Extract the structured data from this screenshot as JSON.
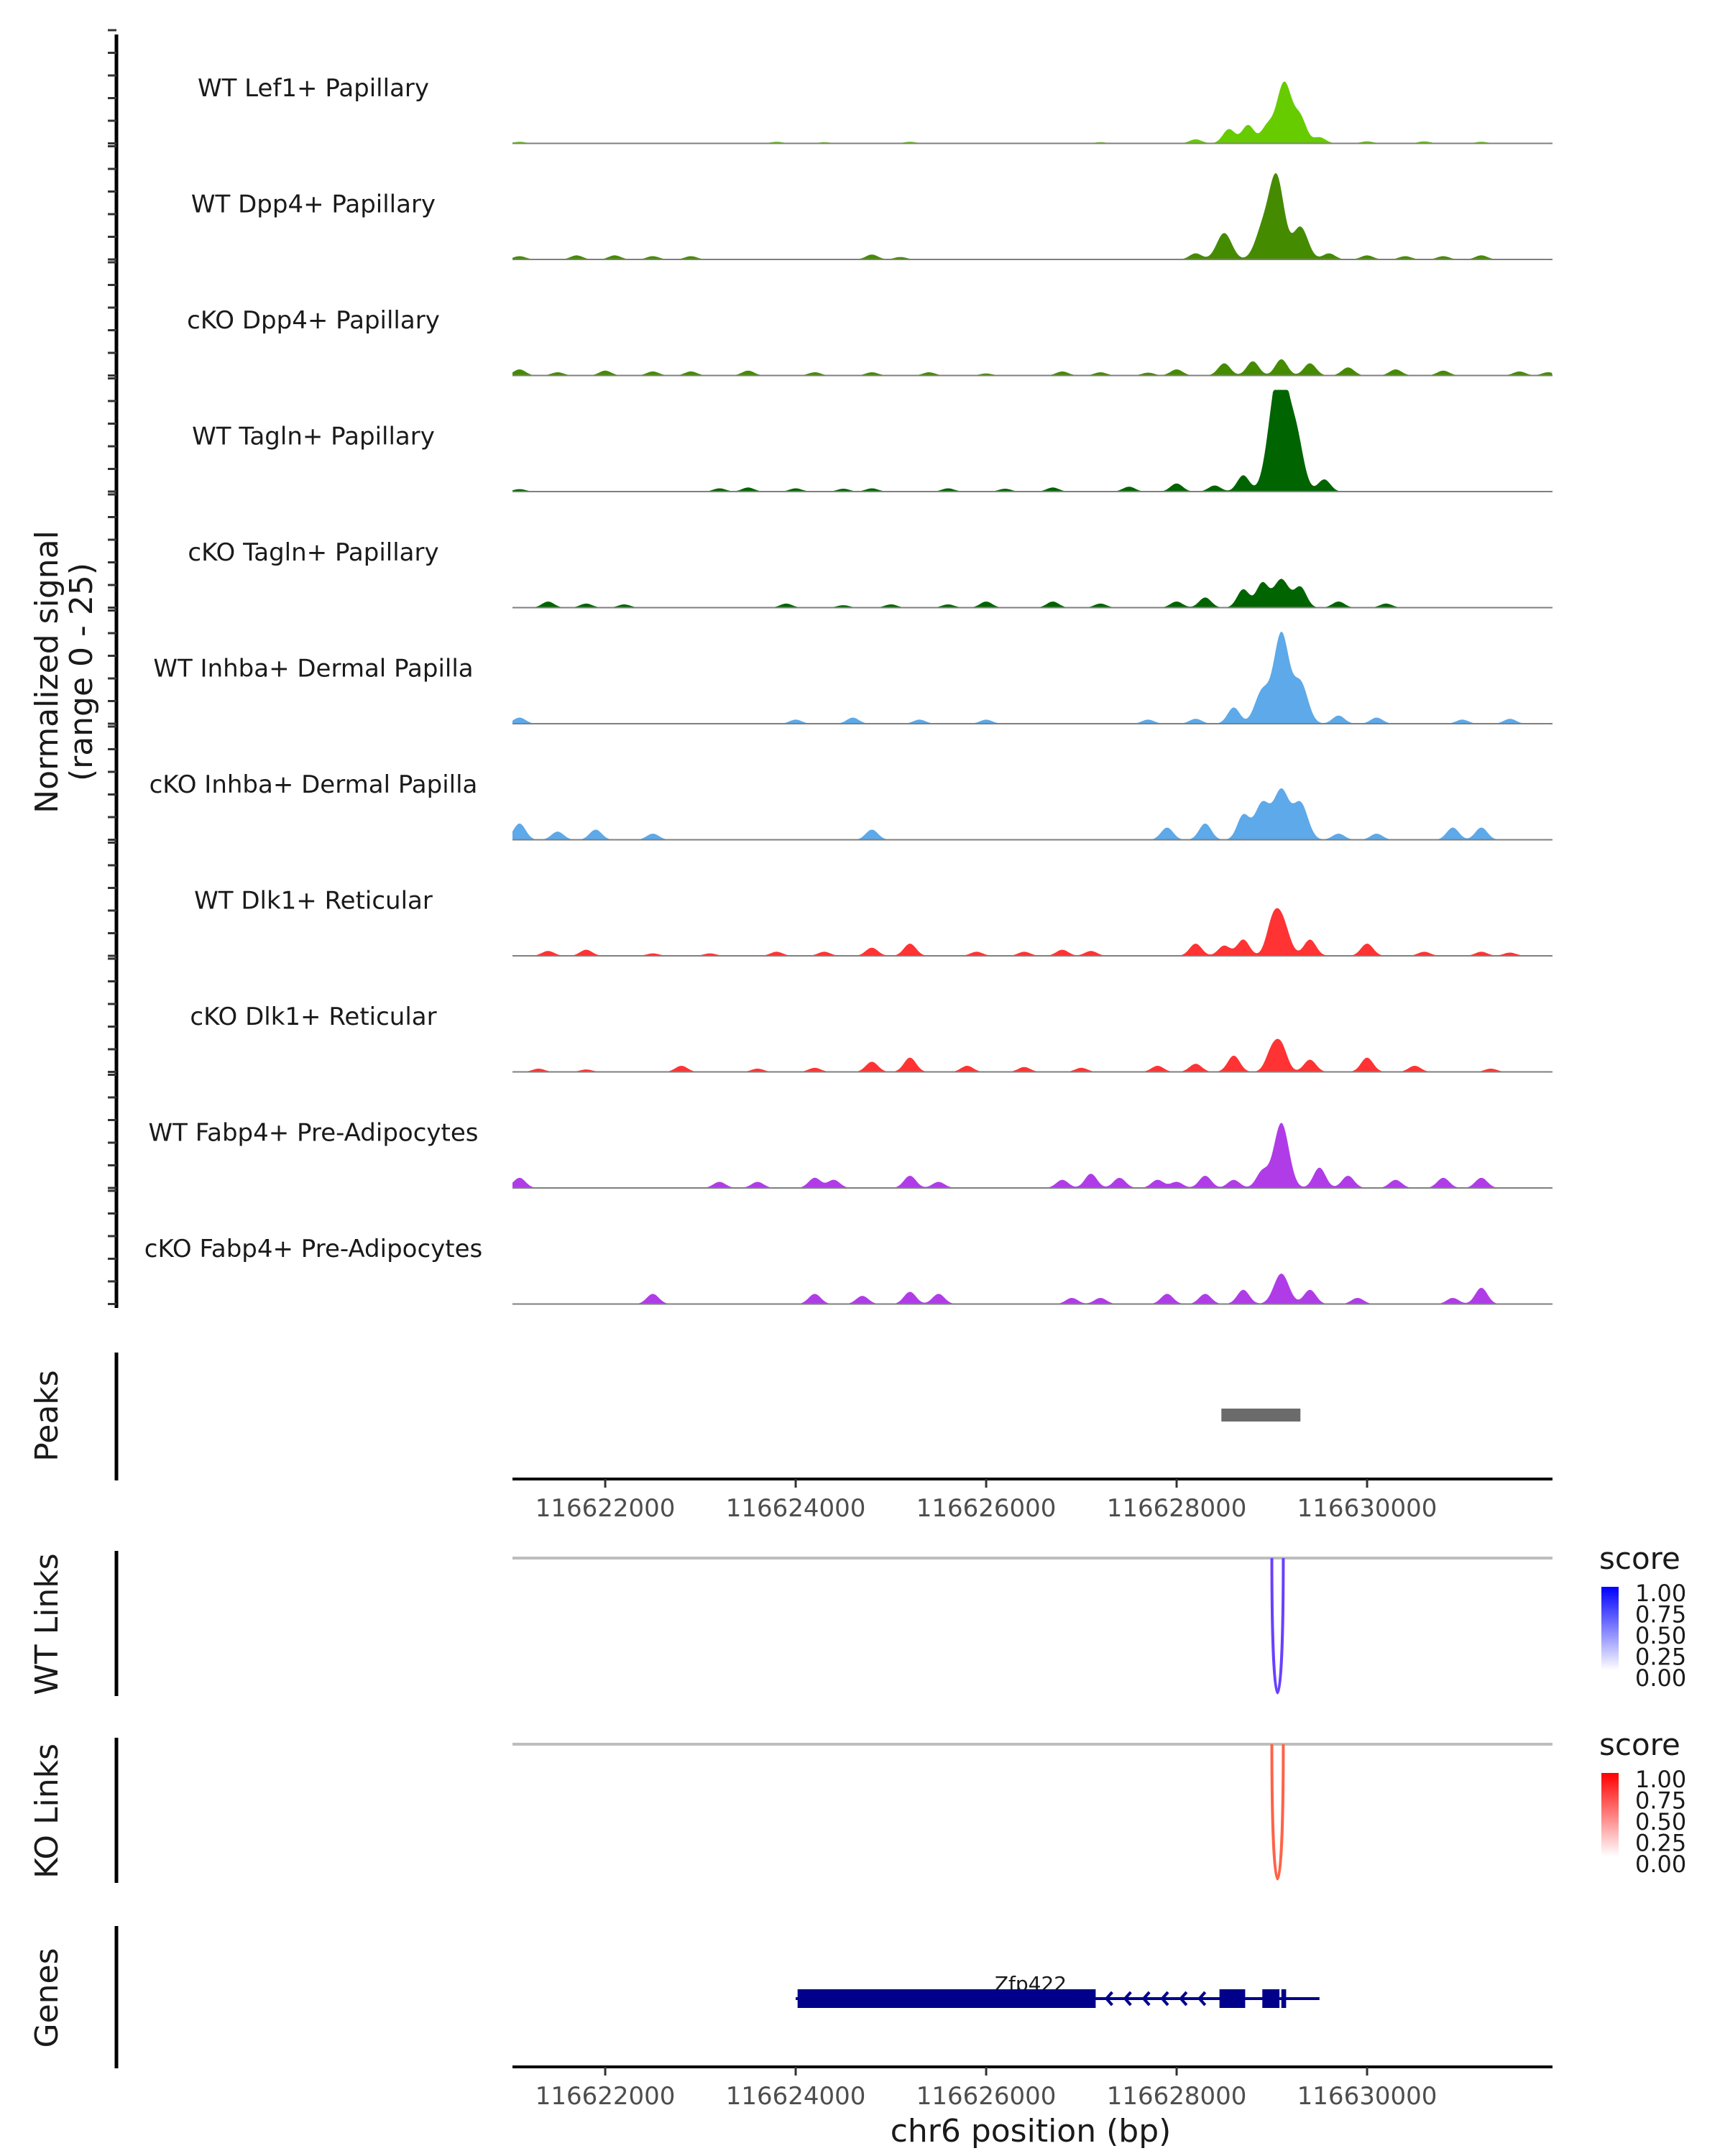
{
  "chart_data": {
    "type": "area",
    "title": "",
    "region": "chr6:116621026-116631947",
    "xlabel": "chr6 position (bp)",
    "xlim": [
      116621026,
      116631947
    ],
    "x_ticks": [
      116622000,
      116624000,
      116626000,
      116628000,
      116630000
    ],
    "x_tick_labels": [
      "116622000",
      "116624000",
      "116626000",
      "116628000",
      "116630000"
    ],
    "coverage_ylabel_line1": "Normalized signal",
    "coverage_ylabel_line2": "(range 0 - 25)",
    "ylim": [
      0,
      25
    ],
    "series": [
      {
        "name": "WT Lef1+ Papillary",
        "color": "#66CC00",
        "peaks": [
          [
            116621100,
            0.4
          ],
          [
            116623800,
            0.4
          ],
          [
            116624300,
            0.3
          ],
          [
            116625200,
            0.4
          ],
          [
            116627200,
            0.3
          ],
          [
            116628200,
            1.0
          ],
          [
            116628550,
            3.5
          ],
          [
            116628750,
            4.5
          ],
          [
            116628950,
            4.0
          ],
          [
            116629130,
            15.0
          ],
          [
            116629300,
            6.0
          ],
          [
            116629500,
            1.5
          ],
          [
            116630000,
            0.5
          ],
          [
            116630600,
            0.5
          ],
          [
            116631200,
            0.4
          ]
        ]
      },
      {
        "name": "WT Dpp4+ Papillary",
        "color": "#458B00",
        "peaks": [
          [
            116621100,
            0.8
          ],
          [
            116621700,
            1.0
          ],
          [
            116622100,
            1.0
          ],
          [
            116622500,
            0.8
          ],
          [
            116622900,
            0.8
          ],
          [
            116624800,
            1.2
          ],
          [
            116625100,
            0.6
          ],
          [
            116628200,
            1.5
          ],
          [
            116628500,
            6.5
          ],
          [
            116628900,
            7.0
          ],
          [
            116629050,
            20.0
          ],
          [
            116629300,
            8.0
          ],
          [
            116629600,
            1.5
          ],
          [
            116630000,
            1.0
          ],
          [
            116630400,
            0.8
          ],
          [
            116630800,
            0.8
          ],
          [
            116631200,
            1.0
          ]
        ]
      },
      {
        "name": "cKO Dpp4+ Papillary",
        "color": "#458B00",
        "peaks": [
          [
            116621100,
            1.5
          ],
          [
            116621500,
            0.8
          ],
          [
            116622000,
            1.2
          ],
          [
            116622500,
            1.0
          ],
          [
            116622900,
            1.0
          ],
          [
            116623500,
            1.2
          ],
          [
            116624200,
            0.8
          ],
          [
            116624800,
            0.8
          ],
          [
            116625400,
            0.8
          ],
          [
            116626000,
            0.5
          ],
          [
            116626800,
            1.0
          ],
          [
            116627200,
            0.8
          ],
          [
            116627700,
            0.7
          ],
          [
            116628000,
            1.5
          ],
          [
            116628500,
            3.0
          ],
          [
            116628800,
            3.5
          ],
          [
            116629100,
            4.0
          ],
          [
            116629400,
            3.0
          ],
          [
            116629800,
            2.0
          ],
          [
            116630300,
            1.5
          ],
          [
            116630800,
            1.2
          ],
          [
            116631600,
            1.0
          ],
          [
            116631900,
            0.8
          ]
        ]
      },
      {
        "name": "WT Tagln+ Papillary",
        "color": "#006400",
        "peaks": [
          [
            116621100,
            0.6
          ],
          [
            116623200,
            0.8
          ],
          [
            116623500,
            1.0
          ],
          [
            116624000,
            0.8
          ],
          [
            116624500,
            0.7
          ],
          [
            116624800,
            0.8
          ],
          [
            116625600,
            0.8
          ],
          [
            116626200,
            0.7
          ],
          [
            116626700,
            1.0
          ],
          [
            116627500,
            1.2
          ],
          [
            116628000,
            2.0
          ],
          [
            116628400,
            1.5
          ],
          [
            116628700,
            4.0
          ],
          [
            116629000,
            12.0
          ],
          [
            116629100,
            24.0
          ],
          [
            116629250,
            14.0
          ],
          [
            116629550,
            3.0
          ]
        ]
      },
      {
        "name": "cKO Tagln+ Papillary",
        "color": "#006400",
        "peaks": [
          [
            116621400,
            1.5
          ],
          [
            116621800,
            1.0
          ],
          [
            116622200,
            0.8
          ],
          [
            116623900,
            1.0
          ],
          [
            116624500,
            0.6
          ],
          [
            116625000,
            0.8
          ],
          [
            116625600,
            0.8
          ],
          [
            116626000,
            1.5
          ],
          [
            116626700,
            1.5
          ],
          [
            116627200,
            1.0
          ],
          [
            116628000,
            1.5
          ],
          [
            116628300,
            2.5
          ],
          [
            116628700,
            4.5
          ],
          [
            116628900,
            6.0
          ],
          [
            116629100,
            7.0
          ],
          [
            116629300,
            5.0
          ],
          [
            116629700,
            1.5
          ],
          [
            116630200,
            1.0
          ]
        ]
      },
      {
        "name": "WT Inhba+ Dermal Papilla",
        "color": "#5DA9E9",
        "peaks": [
          [
            116621100,
            1.5
          ],
          [
            116624000,
            1.0
          ],
          [
            116624600,
            1.5
          ],
          [
            116625300,
            1.0
          ],
          [
            116626000,
            1.0
          ],
          [
            116627700,
            1.0
          ],
          [
            116628200,
            1.2
          ],
          [
            116628600,
            4.0
          ],
          [
            116628900,
            8.0
          ],
          [
            116629100,
            22.0
          ],
          [
            116629300,
            10.0
          ],
          [
            116629700,
            2.0
          ],
          [
            116630100,
            1.5
          ],
          [
            116631000,
            1.0
          ],
          [
            116631500,
            1.2
          ]
        ]
      },
      {
        "name": "cKO Inhba+ Dermal Papilla",
        "color": "#5DA9E9",
        "peaks": [
          [
            116621100,
            4.0
          ],
          [
            116621500,
            2.0
          ],
          [
            116621900,
            2.5
          ],
          [
            116622500,
            1.5
          ],
          [
            116624800,
            2.5
          ],
          [
            116627900,
            3.0
          ],
          [
            116628300,
            4.0
          ],
          [
            116628700,
            6.0
          ],
          [
            116628900,
            9.0
          ],
          [
            116629100,
            12.0
          ],
          [
            116629300,
            9.0
          ],
          [
            116629700,
            1.5
          ],
          [
            116630100,
            1.5
          ],
          [
            116630900,
            3.0
          ],
          [
            116631200,
            3.0
          ]
        ]
      },
      {
        "name": "WT Dlk1+ Reticular",
        "color": "#FF3333",
        "peaks": [
          [
            116621400,
            1.2
          ],
          [
            116621800,
            1.5
          ],
          [
            116622500,
            0.6
          ],
          [
            116623100,
            0.6
          ],
          [
            116623800,
            1.0
          ],
          [
            116624300,
            1.0
          ],
          [
            116624800,
            2.0
          ],
          [
            116625200,
            3.0
          ],
          [
            116625900,
            1.0
          ],
          [
            116626400,
            1.0
          ],
          [
            116626800,
            1.5
          ],
          [
            116627100,
            1.2
          ],
          [
            116628200,
            3.0
          ],
          [
            116628500,
            2.5
          ],
          [
            116628700,
            4.0
          ],
          [
            116629000,
            6.0
          ],
          [
            116629100,
            9.0
          ],
          [
            116629400,
            4.0
          ],
          [
            116630000,
            3.0
          ],
          [
            116630600,
            1.0
          ],
          [
            116631200,
            1.0
          ],
          [
            116631500,
            0.8
          ]
        ]
      },
      {
        "name": "cKO Dlk1+ Reticular",
        "color": "#FF3333",
        "peaks": [
          [
            116621300,
            0.8
          ],
          [
            116621800,
            0.6
          ],
          [
            116622800,
            1.5
          ],
          [
            116623600,
            0.8
          ],
          [
            116624200,
            1.0
          ],
          [
            116624800,
            2.5
          ],
          [
            116625200,
            3.5
          ],
          [
            116625800,
            1.5
          ],
          [
            116626400,
            1.2
          ],
          [
            116627000,
            1.0
          ],
          [
            116627800,
            1.5
          ],
          [
            116628200,
            2.0
          ],
          [
            116628600,
            4.0
          ],
          [
            116629000,
            5.0
          ],
          [
            116629100,
            6.0
          ],
          [
            116629400,
            3.0
          ],
          [
            116630000,
            3.5
          ],
          [
            116630500,
            1.5
          ],
          [
            116631300,
            0.8
          ]
        ]
      },
      {
        "name": "WT Fabp4+ Pre-Adipocytes",
        "color": "#B03CE8",
        "peaks": [
          [
            116621100,
            2.5
          ],
          [
            116623200,
            1.5
          ],
          [
            116623600,
            1.5
          ],
          [
            116624200,
            2.5
          ],
          [
            116624400,
            2.0
          ],
          [
            116625200,
            3.0
          ],
          [
            116625500,
            1.5
          ],
          [
            116626800,
            2.0
          ],
          [
            116627100,
            3.5
          ],
          [
            116627400,
            2.5
          ],
          [
            116627800,
            2.0
          ],
          [
            116628000,
            1.5
          ],
          [
            116628300,
            3.0
          ],
          [
            116628600,
            2.0
          ],
          [
            116628900,
            4.0
          ],
          [
            116629100,
            16.0
          ],
          [
            116629500,
            5.0
          ],
          [
            116629800,
            3.0
          ],
          [
            116630300,
            2.0
          ],
          [
            116630800,
            2.5
          ],
          [
            116631200,
            2.5
          ]
        ]
      },
      {
        "name": "cKO Fabp4+ Pre-Adipocytes",
        "color": "#B03CE8",
        "peaks": [
          [
            116622500,
            2.5
          ],
          [
            116624200,
            2.5
          ],
          [
            116624700,
            2.0
          ],
          [
            116625200,
            3.0
          ],
          [
            116625500,
            2.5
          ],
          [
            116626900,
            1.5
          ],
          [
            116627200,
            1.5
          ],
          [
            116627900,
            2.5
          ],
          [
            116628300,
            2.5
          ],
          [
            116628700,
            3.5
          ],
          [
            116629100,
            7.5
          ],
          [
            116629400,
            3.5
          ],
          [
            116629900,
            1.5
          ],
          [
            116630900,
            1.5
          ],
          [
            116631200,
            4.0
          ]
        ]
      }
    ],
    "peaks_track": {
      "label": "Peaks",
      "intervals": [
        [
          116628470,
          116629300
        ]
      ],
      "color": "#6B6B6B"
    },
    "links": [
      {
        "label": "WT Links",
        "start": 116629000,
        "end": 116629120,
        "score": 0.75,
        "color": "#6A40FF",
        "legend": {
          "title": "score",
          "ticks": [
            "1.00",
            "0.75",
            "0.50",
            "0.25",
            "0.00"
          ],
          "high": "#0000FF",
          "low": "#FFFFFF"
        }
      },
      {
        "label": "KO Links",
        "start": 116629000,
        "end": 116629120,
        "score": 0.65,
        "color": "#FF6347",
        "legend": {
          "title": "score",
          "ticks": [
            "1.00",
            "0.75",
            "0.50",
            "0.25",
            "0.00"
          ],
          "high": "#FF0000",
          "low": "#FFFFFF"
        }
      }
    ],
    "genes_track": {
      "label": "Genes",
      "gene_name": "Zfp422",
      "strand": "-",
      "color": "#00008B",
      "span": [
        116624000,
        116629500
      ],
      "exons": [
        [
          116624020,
          116627150
        ],
        [
          116628450,
          116628720
        ],
        [
          116628900,
          116629080
        ],
        [
          116629100,
          116629150
        ]
      ],
      "intron_arrows": 6
    }
  }
}
